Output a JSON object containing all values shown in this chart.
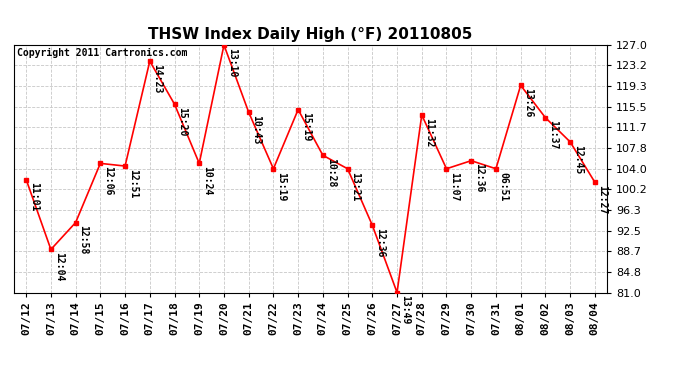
{
  "title": "THSW Index Daily High (°F) 20110805",
  "copyright": "Copyright 2011 Cartronics.com",
  "dates": [
    "07/12",
    "07/13",
    "07/14",
    "07/15",
    "07/16",
    "07/17",
    "07/18",
    "07/19",
    "07/20",
    "07/21",
    "07/22",
    "07/23",
    "07/24",
    "07/25",
    "07/26",
    "07/27",
    "07/28",
    "07/29",
    "07/30",
    "07/31",
    "08/01",
    "08/02",
    "08/03",
    "08/04"
  ],
  "values": [
    102.0,
    89.0,
    94.0,
    105.0,
    104.5,
    124.0,
    116.0,
    105.0,
    127.0,
    114.5,
    104.0,
    115.0,
    106.5,
    104.0,
    93.5,
    81.0,
    114.0,
    104.0,
    105.5,
    104.0,
    119.5,
    113.5,
    109.0,
    101.5
  ],
  "labels": [
    "11:01",
    "12:04",
    "12:58",
    "12:06",
    "12:51",
    "14:23",
    "15:20",
    "10:24",
    "13:10",
    "10:43",
    "15:19",
    "15:19",
    "10:28",
    "13:21",
    "12:36",
    "13:49",
    "11:32",
    "11:07",
    "12:36",
    "06:51",
    "13:26",
    "11:37",
    "12:45",
    "12:27"
  ],
  "ylim": [
    81.0,
    127.0
  ],
  "yticks": [
    81.0,
    84.8,
    88.7,
    92.5,
    96.3,
    100.2,
    104.0,
    107.8,
    111.7,
    115.5,
    119.3,
    123.2,
    127.0
  ],
  "line_color": "red",
  "marker_color": "red",
  "bg_color": "#ffffff",
  "grid_color": "#c8c8c8",
  "title_fontsize": 11,
  "label_fontsize": 7,
  "tick_fontsize": 8,
  "copyright_fontsize": 7
}
